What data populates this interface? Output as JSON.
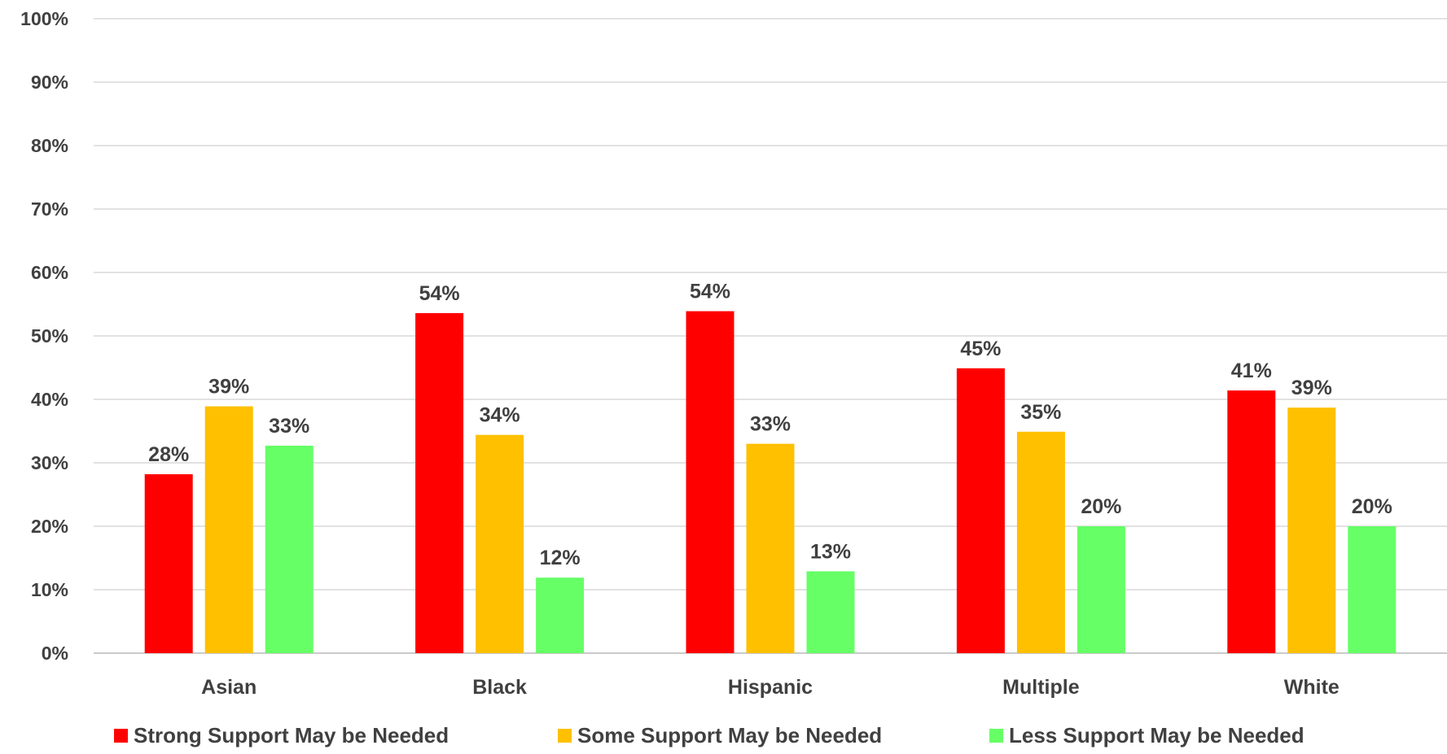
{
  "chart_data": {
    "type": "bar",
    "categories": [
      "Asian",
      "Black",
      "Hispanic",
      "Multiple",
      "White"
    ],
    "series": [
      {
        "name": "Strong Support May be Needed",
        "color": "#FF0000",
        "values": [
          28,
          54,
          54,
          45,
          41
        ],
        "labels": [
          "28%",
          "54%",
          "54%",
          "45%",
          "41%"
        ],
        "display_values": [
          28.2,
          53.6,
          53.9,
          44.9,
          41.4
        ]
      },
      {
        "name": "Some Support May be Needed",
        "color": "#FFC000",
        "values": [
          39,
          34,
          33,
          35,
          39
        ],
        "labels": [
          "39%",
          "34%",
          "33%",
          "35%",
          "39%"
        ],
        "display_values": [
          38.9,
          34.4,
          33.0,
          34.9,
          38.7
        ]
      },
      {
        "name": "Less Support May be Needed",
        "color": "#66FF66",
        "values": [
          33,
          12,
          13,
          20,
          20
        ],
        "labels": [
          "33%",
          "12%",
          "13%",
          "20%",
          "20%"
        ],
        "display_values": [
          32.7,
          11.9,
          12.9,
          20.0,
          20.0
        ]
      }
    ],
    "ylim": [
      0,
      100
    ],
    "yticks": [
      0,
      10,
      20,
      30,
      40,
      50,
      60,
      70,
      80,
      90,
      100
    ],
    "ytick_labels": [
      "0%",
      "10%",
      "20%",
      "30%",
      "40%",
      "50%",
      "60%",
      "70%",
      "80%",
      "90%",
      "100%"
    ],
    "title": "",
    "xlabel": "",
    "ylabel": "",
    "grid": true,
    "legend_position": "bottom",
    "gridline_color": "#D9D9D9",
    "text_color": "#404040"
  }
}
